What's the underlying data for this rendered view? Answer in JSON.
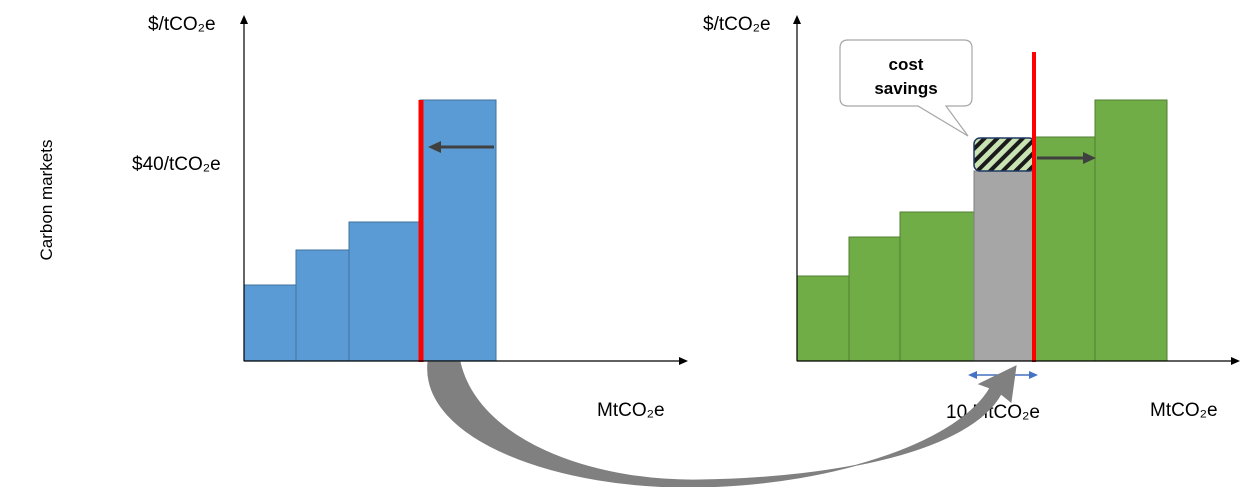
{
  "side_label": "Carbon markets",
  "left_panel": {
    "y_axis_label": "$/tCO₂e",
    "x_axis_label": "MtCO₂e",
    "price_label": "$40/tCO₂e",
    "bar_color": "#5b9bd5"
  },
  "right_panel": {
    "y_axis_label": "$/tCO₂e",
    "x_axis_label": "MtCO₂e",
    "transfer_label": "10 MtCO₂e",
    "callout_line1": "cost",
    "callout_line2": "savings",
    "bar_color": "#70ad47",
    "transferred_bar_color": "#a6a6a6"
  },
  "colors": {
    "cap_line": "#ff0000",
    "shift_arrow": "#404040",
    "transfer_arrow": "#808080",
    "width_arrow": "#4472c4"
  }
}
